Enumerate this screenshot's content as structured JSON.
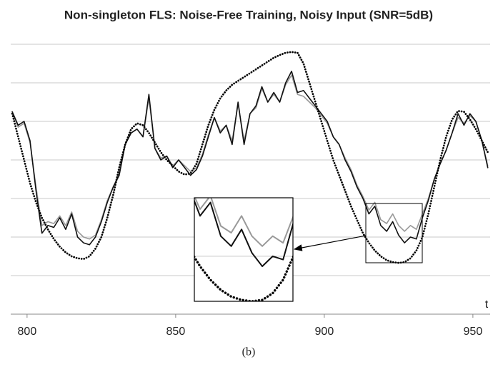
{
  "chart_data": {
    "type": "line",
    "title": "Non-singleton FLS: Noise-Free Training, Noisy Input (SNR=5dB)",
    "x_label": "t",
    "caption": "(b)",
    "x": [
      795,
      797,
      799,
      801,
      803,
      805,
      807,
      809,
      811,
      813,
      815,
      817,
      819,
      821,
      823,
      825,
      827,
      829,
      831,
      833,
      835,
      837,
      839,
      841,
      843,
      845,
      847,
      849,
      851,
      853,
      855,
      857,
      859,
      861,
      863,
      865,
      867,
      869,
      871,
      873,
      875,
      877,
      879,
      881,
      883,
      885,
      887,
      889,
      891,
      893,
      895,
      897,
      899,
      901,
      903,
      905,
      907,
      909,
      911,
      913,
      915,
      917,
      919,
      921,
      923,
      925,
      927,
      929,
      931,
      933,
      935,
      937,
      939,
      941,
      943,
      945,
      947,
      949,
      951,
      953,
      955
    ],
    "series": [
      {
        "color": "#999999",
        "style": "solid",
        "values": [
          5.2,
          4.85,
          4.95,
          4.45,
          3.3,
          2.3,
          2.4,
          2.35,
          2.55,
          2.3,
          2.65,
          2.15,
          2.0,
          1.95,
          2.05,
          2.45,
          2.95,
          3.3,
          3.65,
          4.4,
          4.7,
          4.8,
          4.6,
          5.6,
          4.3,
          4.05,
          4.1,
          3.85,
          4.0,
          3.85,
          3.7,
          3.8,
          4.15,
          4.65,
          5.1,
          4.75,
          4.9,
          4.5,
          5.45,
          4.5,
          5.2,
          5.35,
          5.85,
          5.5,
          5.7,
          5.5,
          5.95,
          6.2,
          5.7,
          5.65,
          5.5,
          5.35,
          5.15,
          4.95,
          4.6,
          4.4,
          4.05,
          3.75,
          3.35,
          3.05,
          2.7,
          2.9,
          2.45,
          2.35,
          2.6,
          2.3,
          2.15,
          2.3,
          2.2,
          2.6,
          3.0,
          3.5,
          3.9,
          4.25,
          4.7,
          5.1,
          4.95,
          5.15,
          5.0,
          4.5,
          3.85
        ]
      },
      {
        "color": "#111111",
        "style": "solid",
        "values": [
          5.25,
          4.9,
          5.0,
          4.5,
          3.2,
          2.1,
          2.3,
          2.25,
          2.5,
          2.2,
          2.6,
          2.0,
          1.85,
          1.8,
          2.0,
          2.4,
          2.9,
          3.3,
          3.6,
          4.4,
          4.7,
          4.8,
          4.6,
          5.7,
          4.3,
          4.0,
          4.1,
          3.8,
          4.0,
          3.8,
          3.6,
          3.75,
          4.1,
          4.6,
          5.1,
          4.7,
          4.9,
          4.4,
          5.5,
          4.4,
          5.2,
          5.4,
          5.9,
          5.5,
          5.75,
          5.5,
          6.0,
          6.3,
          5.75,
          5.8,
          5.6,
          5.4,
          5.2,
          5.0,
          4.6,
          4.4,
          4.0,
          3.7,
          3.3,
          3.0,
          2.6,
          2.8,
          2.3,
          2.15,
          2.4,
          2.05,
          1.85,
          2.0,
          1.95,
          2.5,
          2.95,
          3.5,
          3.9,
          4.25,
          4.7,
          5.2,
          4.9,
          5.2,
          5.0,
          4.5,
          3.8
        ]
      },
      {
        "color": "#000000",
        "style": "dotted",
        "values": [
          5.2,
          4.6,
          4.0,
          3.4,
          2.9,
          2.5,
          2.2,
          1.95,
          1.75,
          1.6,
          1.5,
          1.45,
          1.43,
          1.5,
          1.7,
          2.0,
          2.5,
          3.1,
          3.8,
          4.4,
          4.8,
          4.95,
          4.9,
          4.7,
          4.45,
          4.2,
          4.0,
          3.85,
          3.7,
          3.62,
          3.65,
          3.9,
          4.4,
          4.9,
          5.3,
          5.6,
          5.8,
          5.95,
          6.05,
          6.15,
          6.25,
          6.35,
          6.45,
          6.55,
          6.65,
          6.72,
          6.78,
          6.8,
          6.78,
          6.5,
          6.0,
          5.5,
          5.0,
          4.5,
          4.0,
          3.6,
          3.2,
          2.8,
          2.45,
          2.1,
          1.85,
          1.65,
          1.5,
          1.4,
          1.35,
          1.33,
          1.35,
          1.45,
          1.65,
          2.0,
          2.6,
          3.3,
          4.0,
          4.6,
          5.05,
          5.27,
          5.25,
          5.05,
          4.8,
          4.5,
          4.2
        ]
      }
    ],
    "xlim": [
      794.5,
      955.8
    ],
    "xticks": [
      800,
      850,
      900,
      950
    ],
    "ylim": [
      0,
      7.13
    ],
    "yticks": [
      1,
      2,
      3,
      4,
      5,
      6,
      7
    ],
    "grid": true,
    "inset": {
      "xlim": [
        913.9,
        932.9
      ],
      "ylim": [
        1.33,
        2.87
      ]
    }
  }
}
